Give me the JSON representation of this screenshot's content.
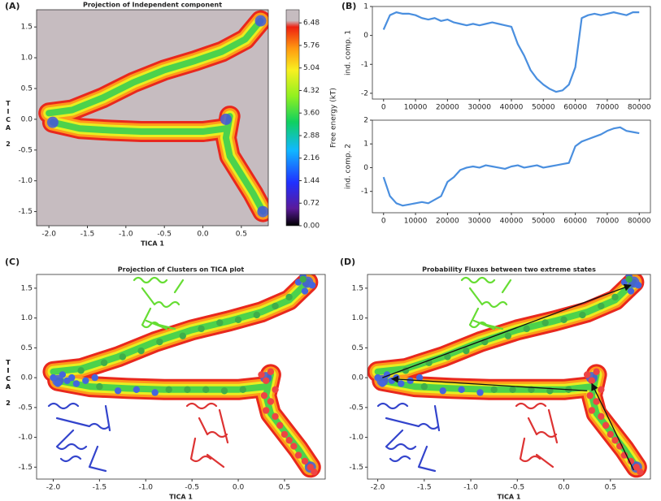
{
  "chart_data": [
    {
      "type": "density",
      "panel_label": "(A)",
      "title": "Projection of Independent component",
      "xlabel": "TICA 1",
      "ylabel": "TICA 2",
      "xlim": [
        -2.16,
        0.85
      ],
      "ylim": [
        -1.73,
        1.78
      ],
      "xticks": [
        {
          "value": -2,
          "label": "-2.0"
        },
        -1.5,
        {
          "value": -1,
          "label": "-1.0"
        },
        -0.5,
        {
          "value": 0,
          "label": "0.0"
        },
        0.5
      ],
      "yticks": [
        -1.5,
        {
          "value": -1,
          "label": "-1.0"
        },
        -0.5,
        {
          "value": 0,
          "label": "0.0"
        },
        0.5,
        {
          "value": 1,
          "label": "1.0"
        },
        1.5
      ],
      "colors": {
        "background": "#c6bcc0",
        "bands": [
          "#e8281e",
          "#ff9a1a",
          "#e8ee20",
          "#4cd24c"
        ],
        "minimum": "#4455dd"
      },
      "ridges": [
        {
          "x": [
            -2.0,
            -1.7,
            -1.3,
            -0.9,
            -0.5,
            -0.1,
            0.25,
            0.55,
            0.75
          ],
          "y": [
            0.1,
            0.15,
            0.35,
            0.6,
            0.8,
            0.95,
            1.1,
            1.3,
            1.6
          ]
        },
        {
          "x": [
            -1.95,
            -1.6,
            -1.2,
            -0.8,
            -0.4,
            0.0,
            0.3
          ],
          "y": [
            -0.05,
            -0.15,
            -0.18,
            -0.2,
            -0.2,
            -0.2,
            -0.15
          ]
        },
        {
          "x": [
            0.35,
            0.3,
            0.35,
            0.5,
            0.65,
            0.78
          ],
          "y": [
            0.05,
            -0.3,
            -0.6,
            -0.9,
            -1.2,
            -1.5
          ]
        }
      ],
      "minima": {
        "x": [
          -1.95,
          0.3,
          0.75,
          0.78
        ],
        "y": [
          -0.05,
          0.0,
          1.6,
          -1.5
        ]
      },
      "colorbar": {
        "label": "Free energy (kT)",
        "lim": [
          0,
          6.9
        ],
        "ticks": [
          {
            "value": 0,
            "label": "0.00"
          },
          0.72,
          1.44,
          2.16,
          2.88,
          {
            "value": 3.6,
            "label": "3.60"
          },
          4.32,
          5.04,
          5.76,
          6.48
        ]
      }
    },
    {
      "type": "line",
      "panel_label": "(B)",
      "ylabel": "ind. comp. 1",
      "color": "#4a8fdf",
      "xlim": [
        -3500,
        83500
      ],
      "ylim": [
        -2.2,
        1.0
      ],
      "xticks": [
        0,
        10000,
        20000,
        30000,
        40000,
        50000,
        60000,
        70000,
        80000
      ],
      "yticks": [
        -2,
        -1,
        0,
        1
      ],
      "x": [
        0,
        2000,
        4000,
        6000,
        8000,
        10000,
        12000,
        14000,
        16000,
        18000,
        20000,
        22000,
        24000,
        26000,
        28000,
        30000,
        32000,
        34000,
        36000,
        38000,
        40000,
        42000,
        44000,
        46000,
        48000,
        50000,
        52000,
        54000,
        56000,
        58000,
        60000,
        62000,
        64000,
        66000,
        68000,
        70000,
        72000,
        74000,
        76000,
        78000,
        80000
      ],
      "values": [
        0.2,
        0.7,
        0.8,
        0.75,
        0.75,
        0.7,
        0.6,
        0.55,
        0.6,
        0.5,
        0.55,
        0.45,
        0.4,
        0.35,
        0.4,
        0.35,
        0.4,
        0.45,
        0.4,
        0.35,
        0.3,
        -0.3,
        -0.7,
        -1.2,
        -1.5,
        -1.7,
        -1.85,
        -1.95,
        -1.9,
        -1.7,
        -1.1,
        0.6,
        0.7,
        0.75,
        0.7,
        0.75,
        0.8,
        0.75,
        0.7,
        0.8,
        0.8
      ]
    },
    {
      "type": "line",
      "ylabel": "ind. comp. 2",
      "color": "#4a8fdf",
      "xlim": [
        -3500,
        83500
      ],
      "ylim": [
        -1.9,
        2.0
      ],
      "xticks": [
        0,
        10000,
        20000,
        30000,
        40000,
        50000,
        60000,
        70000,
        80000
      ],
      "yticks": [
        -1,
        0,
        1,
        2
      ],
      "x": [
        0,
        2000,
        4000,
        6000,
        8000,
        10000,
        12000,
        14000,
        16000,
        18000,
        20000,
        22000,
        24000,
        26000,
        28000,
        30000,
        32000,
        34000,
        36000,
        38000,
        40000,
        42000,
        44000,
        46000,
        48000,
        50000,
        52000,
        54000,
        56000,
        58000,
        60000,
        62000,
        64000,
        66000,
        68000,
        70000,
        72000,
        74000,
        76000,
        78000,
        80000
      ],
      "values": [
        -0.4,
        -1.2,
        -1.5,
        -1.6,
        -1.55,
        -1.5,
        -1.45,
        -1.5,
        -1.35,
        -1.2,
        -0.6,
        -0.4,
        -0.1,
        0.0,
        0.05,
        0.0,
        0.1,
        0.05,
        0.0,
        -0.05,
        0.05,
        0.1,
        0.0,
        0.05,
        0.1,
        0.0,
        0.05,
        0.1,
        0.15,
        0.2,
        0.9,
        1.1,
        1.2,
        1.3,
        1.4,
        1.55,
        1.65,
        1.7,
        1.55,
        1.5,
        1.45
      ]
    },
    {
      "type": "density",
      "panel_label": "(C)",
      "title": "Projection of Clusters on TICA plot",
      "xlabel": "TICA 1",
      "ylabel": "TICA 2",
      "xlim": [
        -2.18,
        0.94
      ],
      "ylim": [
        -1.7,
        1.73
      ],
      "xticks": [
        {
          "value": -2,
          "label": "-2.0"
        },
        -1.5,
        {
          "value": -1,
          "label": "-1.0"
        },
        -0.5,
        {
          "value": 0,
          "label": "0.0"
        },
        0.5
      ],
      "yticks": [
        -1.5,
        {
          "value": -1,
          "label": "-1.0"
        },
        -0.5,
        {
          "value": 0,
          "label": "0.0"
        },
        0.5,
        {
          "value": 1,
          "label": "1.0"
        },
        1.5
      ],
      "colors": {
        "background": "#ffffff",
        "bands": [
          "#e8281e",
          "#ff9a1a",
          "#e8ee20",
          "#4cd24c"
        ],
        "minimum": "#4455dd"
      },
      "ridges": [
        {
          "x": [
            -2.0,
            -1.7,
            -1.3,
            -0.9,
            -0.5,
            -0.1,
            0.25,
            0.55,
            0.75
          ],
          "y": [
            0.1,
            0.15,
            0.35,
            0.6,
            0.8,
            0.95,
            1.1,
            1.3,
            1.6
          ]
        },
        {
          "x": [
            -1.95,
            -1.6,
            -1.2,
            -0.8,
            -0.4,
            0.0,
            0.3
          ],
          "y": [
            -0.05,
            -0.15,
            -0.18,
            -0.2,
            -0.2,
            -0.2,
            -0.15
          ]
        },
        {
          "x": [
            0.35,
            0.3,
            0.35,
            0.5,
            0.65,
            0.78
          ],
          "y": [
            0.05,
            -0.3,
            -0.6,
            -0.9,
            -1.2,
            -1.5
          ]
        }
      ],
      "minima": {
        "x": [
          -1.95,
          0.3,
          0.75,
          0.78
        ],
        "y": [
          -0.05,
          0.0,
          1.6,
          -1.5
        ]
      },
      "clusters": [
        {
          "color": "#4466dd",
          "x": [
            -2.0,
            -1.95,
            -1.9,
            -1.85,
            -1.8,
            -1.75,
            -1.65,
            -1.55,
            -1.3,
            -1.1,
            -0.9,
            0.65,
            0.7,
            0.8,
            0.72
          ],
          "y": [
            0.0,
            -0.1,
            0.05,
            -0.05,
            0.0,
            -0.1,
            -0.05,
            0.0,
            -0.22,
            -0.2,
            -0.25,
            1.6,
            1.7,
            1.55,
            1.45
          ]
        },
        {
          "color": "#3fae4a",
          "x": [
            -1.5,
            -1.7,
            -1.45,
            -1.25,
            -1.05,
            -0.85,
            -0.6,
            -0.4,
            -0.2,
            0.0,
            0.2,
            0.4,
            0.55,
            -0.75,
            -0.55,
            -0.35,
            -0.15,
            0.05,
            0.7
          ],
          "y": [
            -0.15,
            0.12,
            0.25,
            0.35,
            0.45,
            0.6,
            0.7,
            0.82,
            0.92,
            0.97,
            1.05,
            1.2,
            1.35,
            -0.2,
            -0.2,
            -0.2,
            -0.22,
            -0.2,
            1.65
          ]
        },
        {
          "color": "#ee4444",
          "x": [
            0.25,
            0.3,
            0.35,
            0.28,
            0.35,
            0.3,
            0.4,
            0.45,
            0.5,
            0.55,
            0.6,
            0.65,
            0.72,
            0.78,
            0.82,
            0.4
          ],
          "y": [
            0.05,
            -0.05,
            0.1,
            -0.3,
            -0.4,
            -0.55,
            -0.65,
            -0.8,
            -0.95,
            -1.05,
            -1.15,
            -1.3,
            -1.4,
            -1.5,
            -1.58,
            -0.2
          ]
        }
      ]
    },
    {
      "type": "density",
      "panel_label": "(D)",
      "title": "Probability Fluxes between two extreme states",
      "xlabel": "TICA 1",
      "ylabel": "TICA 2",
      "xlim": [
        -2.11,
        0.93
      ],
      "ylim": [
        -1.7,
        1.73
      ],
      "xticks": [
        {
          "value": -2,
          "label": "-2.0"
        },
        -1.5,
        {
          "value": -1,
          "label": "-1.0"
        },
        -0.5,
        {
          "value": 0,
          "label": "0.0"
        },
        0.5
      ],
      "yticks": [
        -1.5,
        {
          "value": -1,
          "label": "-1.0"
        },
        -0.5,
        {
          "value": 0,
          "label": "0.0"
        },
        0.5,
        {
          "value": 1,
          "label": "1.0"
        },
        1.5
      ],
      "colors": {
        "background": "#ffffff",
        "bands": [
          "#e8281e",
          "#ff9a1a",
          "#e8ee20",
          "#4cd24c"
        ],
        "minimum": "#4455dd"
      },
      "ridges": [
        {
          "x": [
            -2.0,
            -1.7,
            -1.3,
            -0.9,
            -0.5,
            -0.1,
            0.25,
            0.55,
            0.75
          ],
          "y": [
            0.1,
            0.15,
            0.35,
            0.6,
            0.8,
            0.95,
            1.1,
            1.3,
            1.6
          ]
        },
        {
          "x": [
            -1.95,
            -1.6,
            -1.2,
            -0.8,
            -0.4,
            0.0,
            0.3
          ],
          "y": [
            -0.05,
            -0.15,
            -0.18,
            -0.2,
            -0.2,
            -0.2,
            -0.15
          ]
        },
        {
          "x": [
            0.35,
            0.3,
            0.35,
            0.5,
            0.65,
            0.78
          ],
          "y": [
            0.05,
            -0.3,
            -0.6,
            -0.9,
            -1.2,
            -1.5
          ]
        }
      ],
      "minima": {
        "x": [
          -1.95,
          0.3,
          0.75,
          0.78
        ],
        "y": [
          -0.05,
          0.0,
          1.6,
          -1.5
        ]
      },
      "clusters": [
        {
          "color": "#4466dd",
          "x": [
            -2.0,
            -1.95,
            -1.9,
            -1.85,
            -1.8,
            -1.75,
            -1.65,
            -1.55,
            -1.3,
            -1.1,
            -0.9,
            0.65,
            0.7,
            0.8,
            0.72
          ],
          "y": [
            0.0,
            -0.1,
            0.05,
            -0.05,
            0.0,
            -0.1,
            -0.05,
            0.0,
            -0.22,
            -0.2,
            -0.25,
            1.6,
            1.7,
            1.55,
            1.45
          ]
        },
        {
          "color": "#3fae4a",
          "x": [
            -1.5,
            -1.7,
            -1.45,
            -1.25,
            -1.05,
            -0.85,
            -0.6,
            -0.4,
            -0.2,
            0.0,
            0.2,
            0.4,
            0.55,
            -0.75,
            -0.55,
            -0.35,
            -0.15,
            0.05,
            0.7
          ],
          "y": [
            -0.15,
            0.12,
            0.25,
            0.35,
            0.45,
            0.6,
            0.7,
            0.82,
            0.92,
            0.97,
            1.05,
            1.2,
            1.35,
            -0.2,
            -0.2,
            -0.2,
            -0.22,
            -0.2,
            1.65
          ]
        },
        {
          "color": "#ee4444",
          "x": [
            0.25,
            0.3,
            0.35,
            0.28,
            0.35,
            0.3,
            0.4,
            0.45,
            0.5,
            0.55,
            0.6,
            0.65,
            0.72,
            0.78,
            0.82,
            0.4
          ],
          "y": [
            0.05,
            -0.05,
            0.1,
            -0.3,
            -0.4,
            -0.55,
            -0.65,
            -0.8,
            -0.95,
            -1.05,
            -1.15,
            -1.3,
            -1.4,
            -1.5,
            -1.58,
            -0.2
          ]
        }
      ],
      "arrows": [
        {
          "x": [
            -1.95,
            0.72
          ],
          "y": [
            0.0,
            1.55
          ]
        },
        {
          "x": [
            0.25,
            -1.85
          ],
          "y": [
            -0.22,
            -0.02
          ]
        },
        {
          "x": [
            0.75,
            0.3
          ],
          "y": [
            -1.55,
            -0.1
          ]
        }
      ]
    }
  ]
}
